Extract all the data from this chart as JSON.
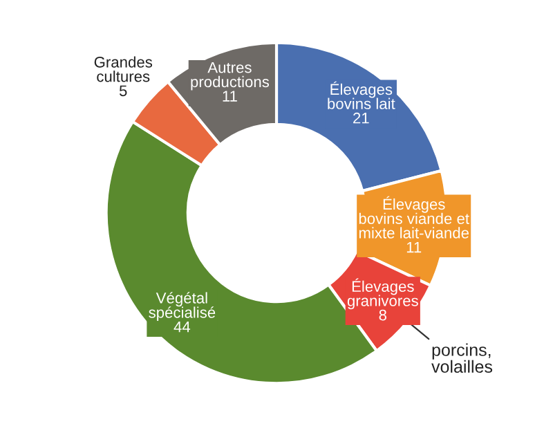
{
  "chart_data": {
    "type": "donut",
    "categories": [
      "Élevages\nbovins lait",
      "Élevages\nbovins viande et\nmixte lait-viande",
      "Élevages\ngranivores",
      "Végétal\nspécialisé",
      "Grandes\ncultures",
      "Autres\nproductions"
    ],
    "values": [
      21,
      11,
      8,
      44,
      5,
      11
    ],
    "colors": [
      "#4a6fb0",
      "#f0962a",
      "#e8433a",
      "#5a8a2e",
      "#e8693f",
      "#6e6a66"
    ],
    "data_labels": true,
    "annotations": [
      {
        "text": "porcins,\nvolailles",
        "x": "Élevages\ngranivores"
      }
    ]
  }
}
